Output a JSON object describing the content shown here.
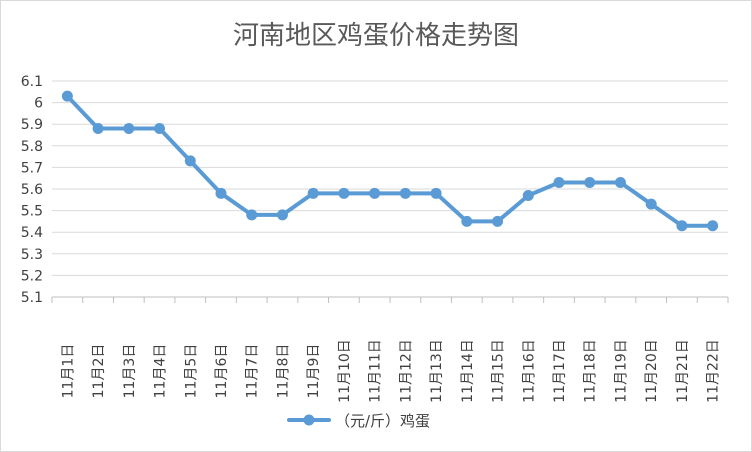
{
  "chart_data": {
    "type": "line",
    "title": "河南地区鸡蛋价格走势图",
    "xlabel": "",
    "ylabel": "",
    "categories": [
      "11月1日",
      "11月2日",
      "11月3日",
      "11月4日",
      "11月5日",
      "11月6日",
      "11月7日",
      "11月8日",
      "11月9日",
      "11月10日",
      "11月11日",
      "11月12日",
      "11月13日",
      "11月14日",
      "11月15日",
      "11月16日",
      "11月17日",
      "11月18日",
      "11月19日",
      "11月20日",
      "11月21日",
      "11月22日"
    ],
    "series": [
      {
        "name": "（元/斤）鸡蛋",
        "values": [
          6.03,
          5.88,
          5.88,
          5.88,
          5.73,
          5.58,
          5.48,
          5.48,
          5.58,
          5.58,
          5.58,
          5.58,
          5.58,
          5.45,
          5.45,
          5.57,
          5.63,
          5.63,
          5.63,
          5.53,
          5.43,
          5.43
        ]
      }
    ],
    "ylim": [
      5.1,
      6.1
    ],
    "yticks": [
      "5.1",
      "5.2",
      "5.3",
      "5.4",
      "5.5",
      "5.6",
      "5.7",
      "5.8",
      "5.9",
      "6",
      "6.1"
    ],
    "grid": true,
    "legend_position": "bottom",
    "colors": {
      "line": "#5b9bd5",
      "grid": "#d9d9d9",
      "text": "#404040",
      "title": "#595959"
    }
  }
}
